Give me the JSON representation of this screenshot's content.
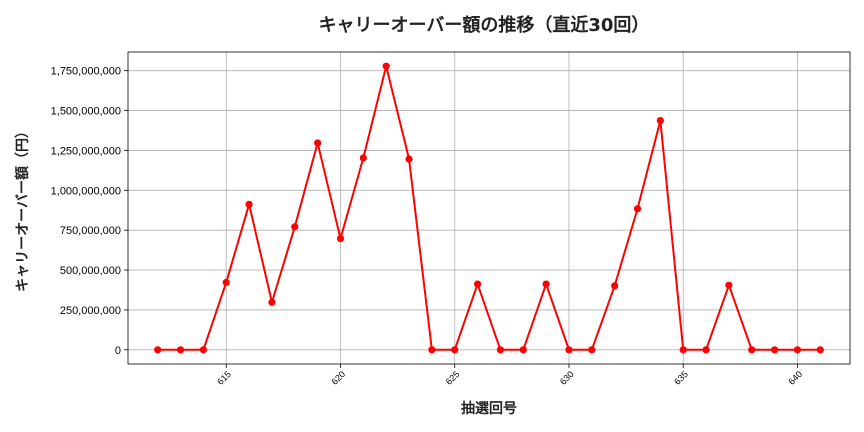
{
  "chart_data": {
    "type": "line",
    "title": "キャリーオーバー額の推移（直近30回）",
    "xlabel": "抽選回号",
    "ylabel": "キャリーオーバー額（円）",
    "x": [
      612,
      613,
      614,
      615,
      616,
      617,
      618,
      619,
      620,
      621,
      622,
      623,
      624,
      625,
      626,
      627,
      628,
      629,
      630,
      631,
      632,
      633,
      634,
      635,
      636,
      637,
      638,
      639,
      640,
      641
    ],
    "series": [
      {
        "values": [
          0,
          0,
          0,
          423000000,
          912000000,
          298000000,
          771000000,
          1297000000,
          697000000,
          1203000000,
          1778000000,
          1196000000,
          0,
          0,
          412000000,
          0,
          0,
          412000000,
          0,
          0,
          401000000,
          884000000,
          1437000000,
          0,
          0,
          405000000,
          0,
          0,
          0,
          0
        ],
        "color": "#ff0000"
      }
    ],
    "xticks": [
      615,
      620,
      625,
      630,
      635,
      640
    ],
    "yticks": [
      0,
      250000000,
      500000000,
      750000000,
      1000000000,
      1250000000,
      1500000000,
      1750000000
    ],
    "ytick_labels": [
      "0",
      "250,000,000",
      "500,000,000",
      "750,000,000",
      "1,000,000,000",
      "1,250,000,000",
      "1,500,000,000",
      "1,750,000,000"
    ],
    "xlim": [
      610.7,
      642.3
    ],
    "ylim": [
      -89000000,
      1867000000
    ],
    "grid": true
  }
}
